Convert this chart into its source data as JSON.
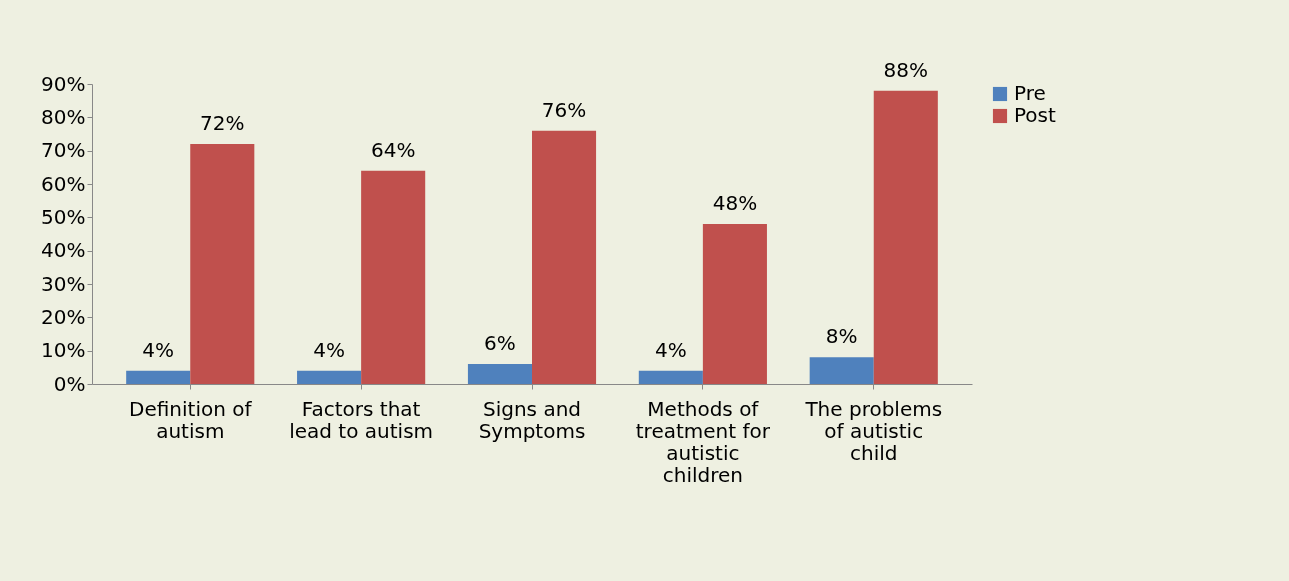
{
  "chart_data": {
    "type": "bar",
    "categories": [
      "Definition of autism",
      "Factors that lead to autism",
      "Signs and Symptoms",
      "Methods of treatment for autistic children",
      "The problems of autistic child"
    ],
    "series": [
      {
        "name": "Pre",
        "color": "#4f81bd",
        "values": [
          4,
          4,
          6,
          4,
          8
        ],
        "value_labels": [
          "4%",
          "4%",
          "6%",
          "4%",
          "8%"
        ]
      },
      {
        "name": "Post",
        "color": "#c0504d",
        "values": [
          72,
          64,
          76,
          48,
          88
        ],
        "value_labels": [
          "72%",
          "64%",
          "76%",
          "48%",
          "88%"
        ]
      }
    ],
    "ylim": [
      0,
      90
    ],
    "yticks": [
      {
        "value": 0,
        "label": "0%"
      },
      {
        "value": 10,
        "label": "10%"
      },
      {
        "value": 20,
        "label": "20%"
      },
      {
        "value": 30,
        "label": "30%"
      },
      {
        "value": 40,
        "label": "40%"
      },
      {
        "value": 50,
        "label": "50%"
      },
      {
        "value": 60,
        "label": "60%"
      },
      {
        "value": 70,
        "label": "70%"
      },
      {
        "value": 80,
        "label": "80%"
      },
      {
        "value": 90,
        "label": "90%"
      }
    ],
    "grid": false,
    "legend": "right"
  }
}
